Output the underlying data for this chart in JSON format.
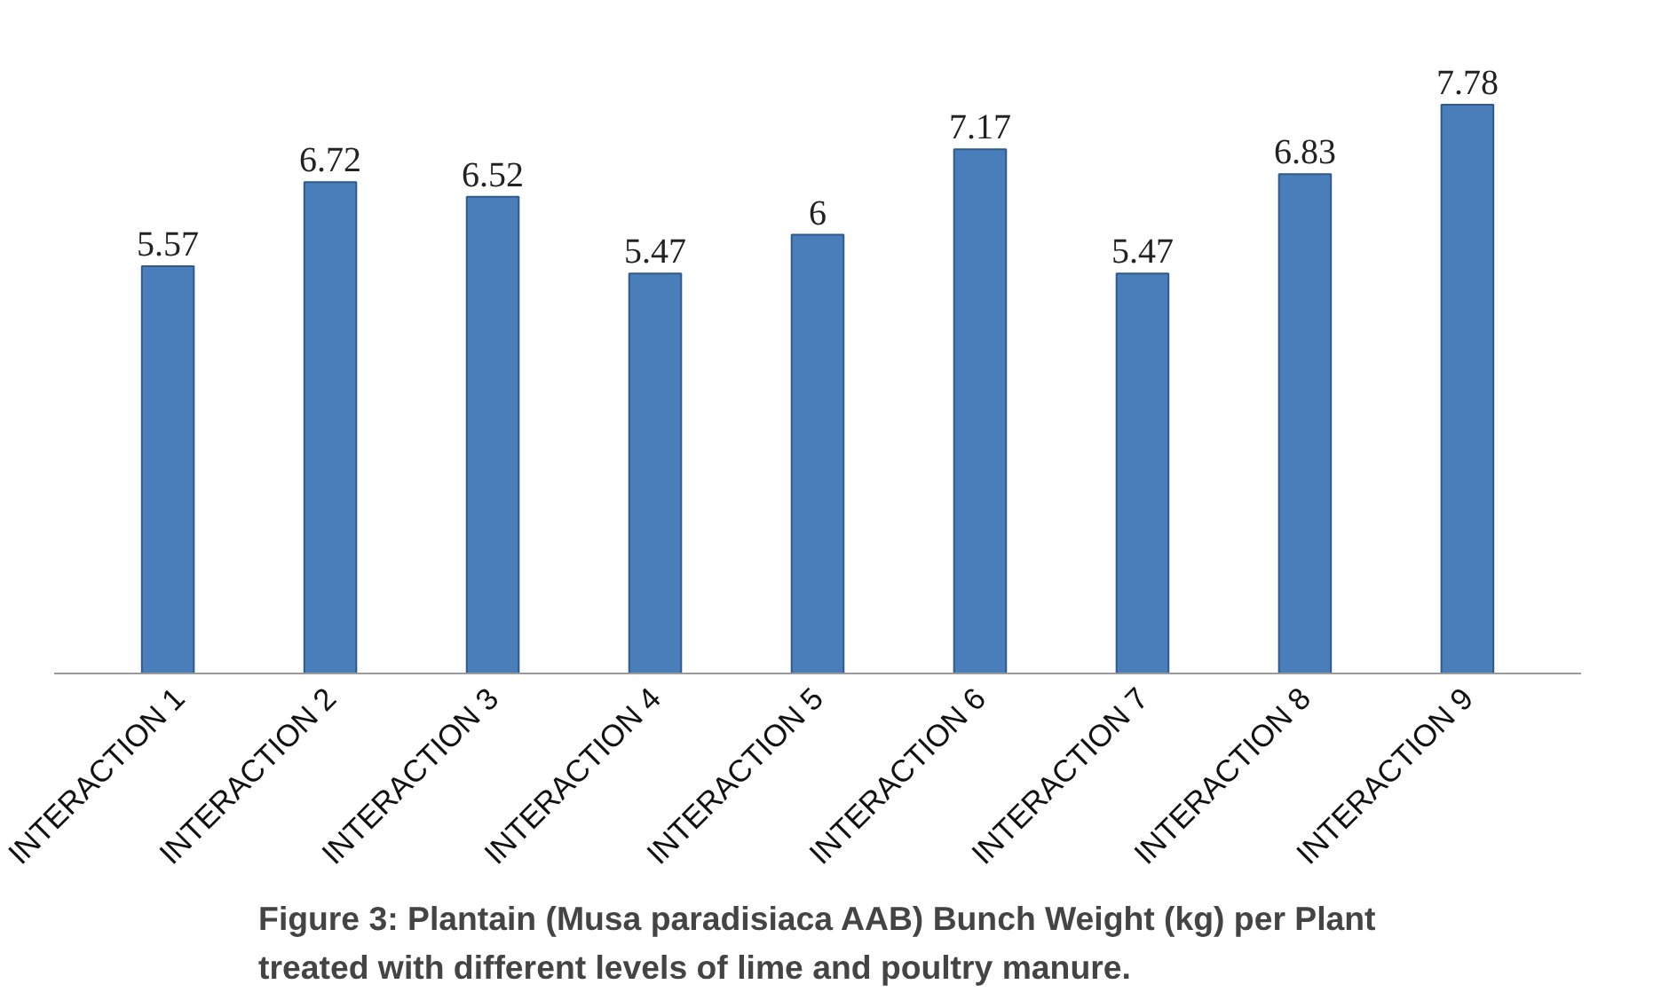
{
  "chart_data": {
    "type": "bar",
    "title": "Figure 3: Plantain (Musa paradisiaca AAB) Bunch Weight (kg) per Plant\ntreated  with different levels of lime and poultry manure.",
    "categories": [
      "INTERACTION 1",
      "INTERACTION 2",
      "INTERACTION 3",
      "INTERACTION 4",
      "INTERACTION 5",
      "INTERACTION 6",
      "INTERACTION 7",
      "INTERACTION 8",
      "INTERACTION 9"
    ],
    "values": [
      5.57,
      6.72,
      6.52,
      5.47,
      6,
      7.17,
      5.47,
      6.83,
      7.78
    ],
    "color": "#4a7ebb",
    "data_labels": true,
    "grid": false
  }
}
